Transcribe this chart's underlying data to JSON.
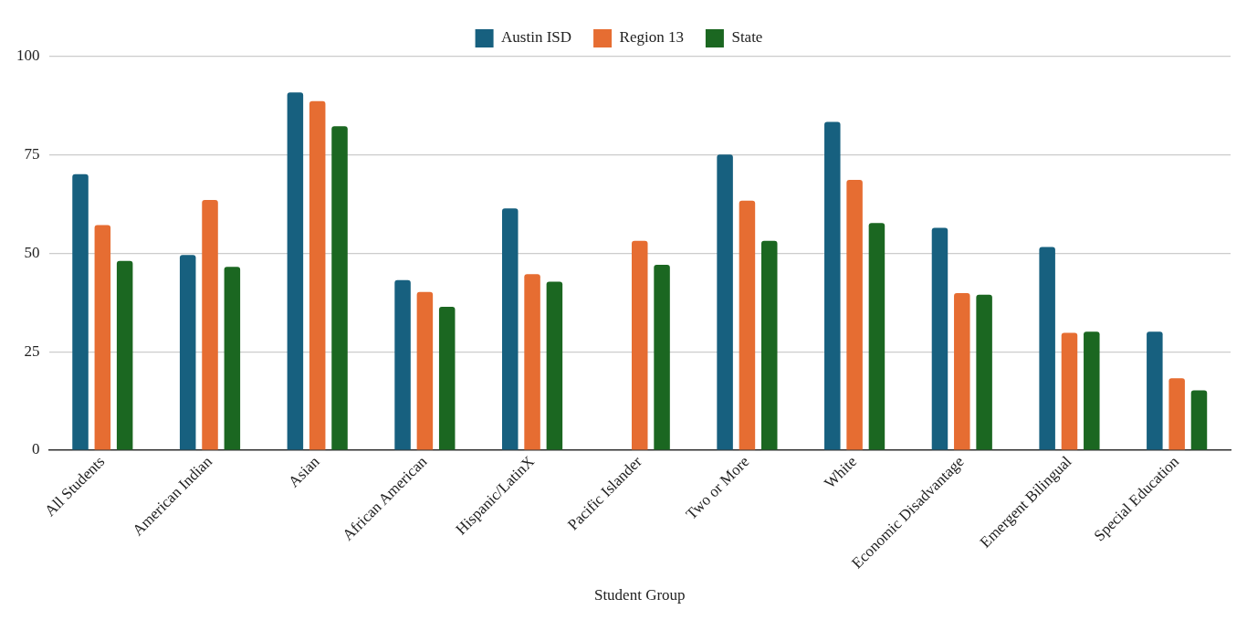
{
  "chart_data": {
    "type": "bar",
    "xlabel": "Student Group",
    "categories": [
      "All Students",
      "American Indian",
      "Asian",
      "African American",
      "Hispanic/LatinX",
      "Pacific Islander",
      "Two or More",
      "White",
      "Economic Disadvantage",
      "Emergent Bilingual",
      "Special Education"
    ],
    "series": [
      {
        "name": "Austin ISD",
        "color": "#17607f",
        "values": [
          70.1,
          49.6,
          90.9,
          43.2,
          61.4,
          null,
          75.1,
          83.4,
          56.5,
          51.6,
          30.1
        ]
      },
      {
        "name": "Region 13",
        "color": "#e66d32",
        "values": [
          57.2,
          63.6,
          88.7,
          40.2,
          44.7,
          53.2,
          63.4,
          68.7,
          39.9,
          29.8,
          18.3
        ]
      },
      {
        "name": "State",
        "color": "#1b6721",
        "values": [
          48.1,
          46.6,
          82.3,
          36.4,
          42.8,
          47.1,
          53.2,
          57.7,
          39.5,
          30.1,
          15.2
        ]
      }
    ],
    "ylim": [
      0,
      100
    ],
    "yticks": [
      0,
      25,
      50,
      75,
      100
    ],
    "grid": "y",
    "legend": "top"
  }
}
